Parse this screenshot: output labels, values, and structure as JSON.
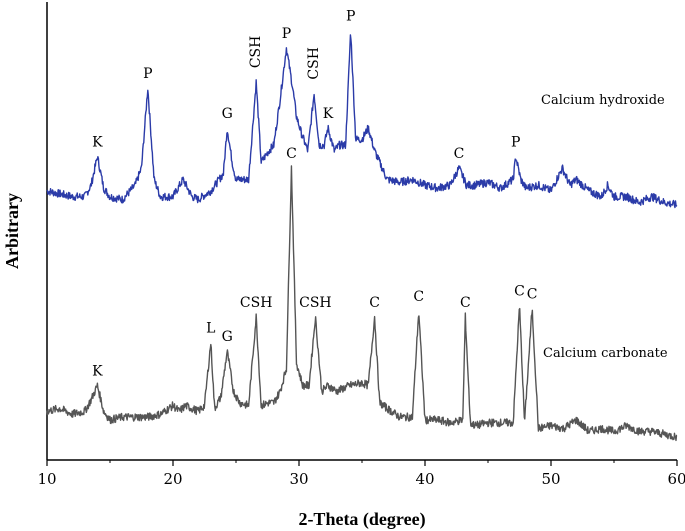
{
  "chart_data": {
    "type": "line",
    "xlabel": "2-Theta (degree)",
    "ylabel": "Arbitrary",
    "xlim": [
      10,
      60
    ],
    "xticks": [
      10,
      20,
      30,
      40,
      50,
      60
    ],
    "series": [
      {
        "name": "Calcium hydroxide",
        "color": "#2b3ba8",
        "baseline": 4.5,
        "x": [
          10,
          11,
          12,
          13,
          13.5,
          14,
          14.5,
          15,
          16,
          17,
          17.5,
          18,
          18.5,
          19,
          20,
          20.8,
          21.5,
          22,
          23,
          24,
          24.3,
          24.7,
          25,
          26,
          26.6,
          27,
          27.6,
          28,
          28.5,
          29,
          29.5,
          29.8,
          30.2,
          30.7,
          31.2,
          31.6,
          32,
          32.3,
          32.8,
          33.2,
          33.7,
          34.1,
          34.5,
          35,
          35.5,
          36,
          37,
          38,
          39,
          40,
          41,
          42,
          42.7,
          43.3,
          44,
          45,
          46,
          47,
          47.2,
          47.6,
          48,
          49,
          50,
          50.9,
          51.5,
          52,
          53,
          54,
          54.5,
          55,
          56,
          57,
          58,
          59,
          60
        ],
        "y": [
          4.7,
          4.65,
          4.6,
          4.6,
          4.8,
          5.3,
          4.75,
          4.6,
          4.55,
          4.8,
          5.1,
          6.5,
          4.9,
          4.6,
          4.6,
          4.9,
          4.6,
          4.55,
          4.7,
          5.0,
          5.8,
          5.2,
          4.9,
          4.9,
          6.6,
          5.2,
          5.4,
          5.5,
          6.3,
          7.2,
          6.5,
          6.0,
          5.7,
          5.4,
          6.4,
          5.5,
          5.5,
          5.8,
          5.4,
          5.5,
          5.5,
          7.5,
          5.6,
          5.6,
          5.8,
          5.4,
          4.9,
          4.85,
          4.9,
          4.8,
          4.75,
          4.8,
          5.1,
          4.8,
          4.8,
          4.85,
          4.75,
          4.9,
          5.3,
          4.9,
          4.75,
          4.8,
          4.7,
          5.1,
          4.8,
          4.9,
          4.7,
          4.6,
          4.8,
          4.6,
          4.6,
          4.5,
          4.6,
          4.5,
          4.45
        ]
      },
      {
        "name": "Calcium carbonate",
        "color": "#555555",
        "baseline": 0.6,
        "x": [
          10,
          11,
          12,
          13,
          13.5,
          14,
          14.5,
          15,
          16,
          17,
          18,
          19,
          20,
          20.5,
          21,
          22,
          22.5,
          23,
          23.3,
          23.8,
          24.3,
          24.8,
          25.3,
          26,
          26.6,
          27,
          27.6,
          28,
          28.5,
          29,
          29.4,
          29.8,
          30.3,
          30.8,
          31.3,
          31.8,
          32.3,
          33,
          34,
          35,
          35.5,
          36,
          36.4,
          37,
          38,
          39,
          39.5,
          40,
          41,
          42,
          43,
          43.2,
          43.6,
          44,
          45,
          46,
          47,
          47.5,
          47.9,
          48.5,
          49,
          50,
          51,
          52,
          53,
          54,
          55,
          56,
          57,
          58,
          59,
          60
        ],
        "y": [
          0.85,
          0.9,
          0.8,
          0.85,
          1.05,
          1.3,
          0.85,
          0.7,
          0.75,
          0.75,
          0.75,
          0.8,
          0.95,
          0.85,
          0.95,
          0.85,
          0.95,
          2.05,
          0.9,
          1.1,
          1.9,
          1.2,
          1.0,
          0.95,
          2.5,
          0.95,
          1.0,
          1.0,
          1.2,
          1.6,
          5.1,
          1.7,
          1.3,
          1.3,
          2.5,
          1.2,
          1.3,
          1.2,
          1.3,
          1.35,
          1.3,
          2.5,
          1.0,
          0.9,
          0.75,
          0.75,
          2.6,
          0.7,
          0.7,
          0.65,
          0.7,
          2.5,
          0.65,
          0.6,
          0.65,
          0.65,
          0.65,
          2.7,
          0.65,
          2.65,
          0.55,
          0.6,
          0.55,
          0.7,
          0.5,
          0.55,
          0.5,
          0.6,
          0.5,
          0.5,
          0.45,
          0.4
        ]
      }
    ],
    "annotations": [
      {
        "text": "K",
        "series": 0,
        "x": 14.0
      },
      {
        "text": "P",
        "series": 0,
        "x": 18.0
      },
      {
        "text": "G",
        "series": 0,
        "x": 24.3
      },
      {
        "text": "CSH",
        "series": 0,
        "x": 26.6
      },
      {
        "text": "P",
        "series": 0,
        "x": 29.0
      },
      {
        "text": "CSH",
        "series": 0,
        "x": 31.2
      },
      {
        "text": "K",
        "series": 0,
        "x": 32.3
      },
      {
        "text": "P",
        "series": 0,
        "x": 34.1
      },
      {
        "text": "C",
        "series": 0,
        "x": 42.7
      },
      {
        "text": "P",
        "series": 0,
        "x": 47.2
      },
      {
        "text": "K",
        "series": 1,
        "x": 14.0
      },
      {
        "text": "L",
        "series": 1,
        "x": 23.0
      },
      {
        "text": "G",
        "series": 1,
        "x": 24.3
      },
      {
        "text": "CSH",
        "series": 1,
        "x": 26.6
      },
      {
        "text": "C",
        "series": 1,
        "x": 29.4
      },
      {
        "text": "CSH",
        "series": 1,
        "x": 31.3
      },
      {
        "text": "C",
        "series": 1,
        "x": 36.0
      },
      {
        "text": "C",
        "series": 1,
        "x": 39.5
      },
      {
        "text": "C",
        "series": 1,
        "x": 43.2
      },
      {
        "text": "C",
        "series": 1,
        "x": 47.5
      },
      {
        "text": "C",
        "series": 1,
        "x": 48.5
      }
    ],
    "grid": false,
    "legend": "inline-right"
  }
}
